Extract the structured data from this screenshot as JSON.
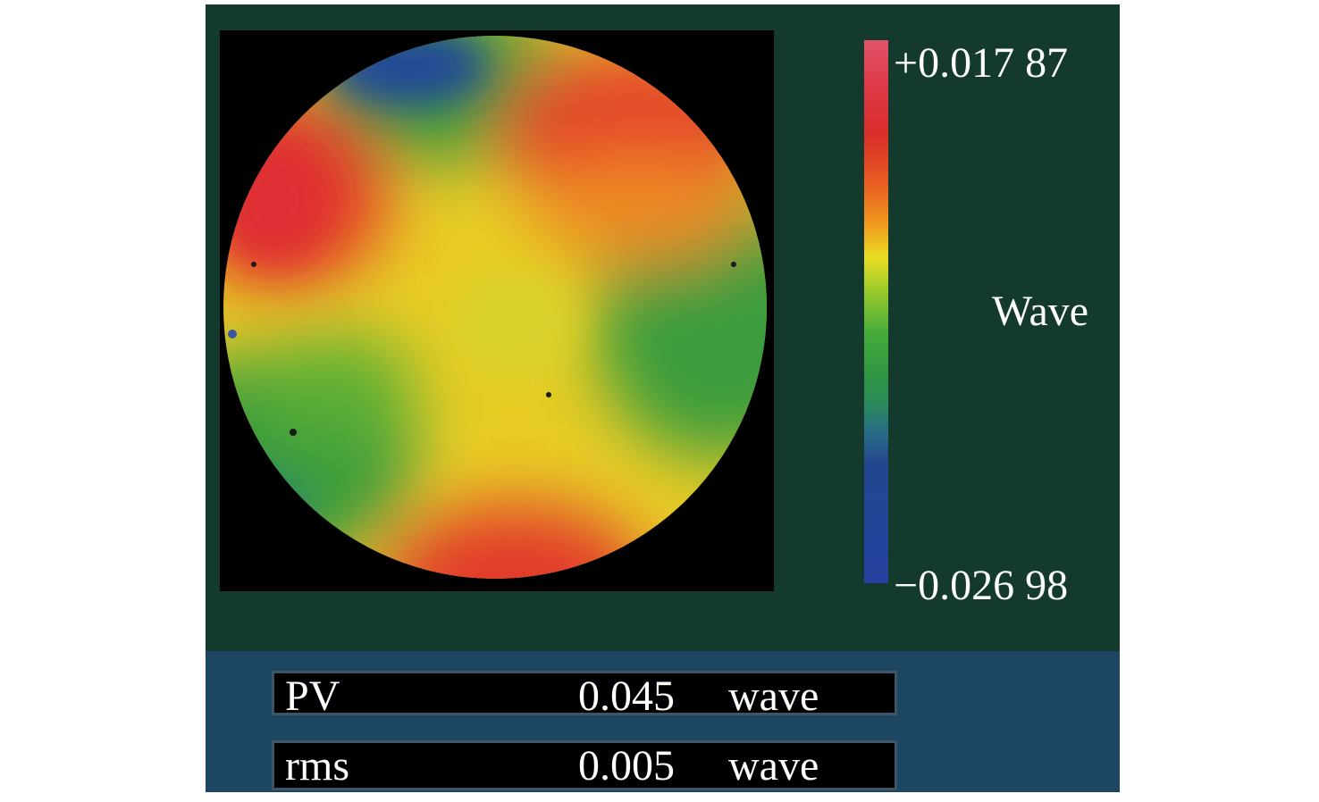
{
  "colorbar": {
    "max_label": "+0.017 87",
    "min_label": "−0.026 98",
    "unit_label": "Wave"
  },
  "measurements": [
    {
      "label": "PV",
      "value": "0.045",
      "unit": "wave"
    },
    {
      "label": "rms",
      "value": "0.005",
      "unit": "wave"
    }
  ],
  "colors": {
    "panel_background": "#133a2d",
    "stats_background": "#1d4663",
    "map_background": "#000000"
  }
}
